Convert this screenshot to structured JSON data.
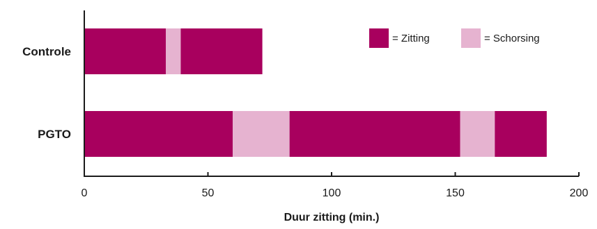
{
  "chart_data": {
    "type": "bar",
    "orientation": "horizontal",
    "stacked": true,
    "title": "",
    "xlabel": "Duur zitting (min.)",
    "ylabel": "",
    "xlim": [
      0,
      200
    ],
    "xticks": [
      "0",
      "50",
      "100",
      "150",
      "200"
    ],
    "grid": false,
    "legend_position": "top-right",
    "legend": [
      {
        "key": "zitting",
        "label": "= Zitting",
        "color": "#a8005e"
      },
      {
        "key": "schorsing",
        "label": "= Schorsing",
        "color": "#e6b3d0"
      }
    ],
    "categories": [
      "Controle",
      "PGTO"
    ],
    "bars": [
      {
        "category": "Controle",
        "segments": [
          {
            "type": "zitting",
            "start": 0,
            "end": 33
          },
          {
            "type": "schorsing",
            "start": 33,
            "end": 39
          },
          {
            "type": "zitting",
            "start": 39,
            "end": 72
          }
        ]
      },
      {
        "category": "PGTO",
        "segments": [
          {
            "type": "zitting",
            "start": 0,
            "end": 60
          },
          {
            "type": "schorsing",
            "start": 60,
            "end": 83
          },
          {
            "type": "zitting",
            "start": 83,
            "end": 152
          },
          {
            "type": "schorsing",
            "start": 152,
            "end": 166
          },
          {
            "type": "zitting",
            "start": 166,
            "end": 187
          }
        ]
      }
    ]
  }
}
